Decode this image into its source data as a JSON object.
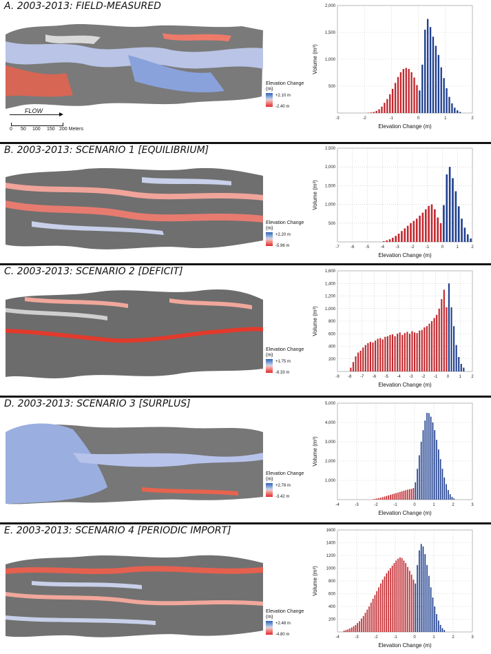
{
  "panels": [
    {
      "title": "A. 2003-2013: FIELD-MEASURED",
      "legend": {
        "title": "Elevation Change (m)",
        "high": "+2.10 m",
        "low": "-2.40 m"
      },
      "color_high": "#2e63b8",
      "color_low": "#e02a2a"
    },
    {
      "title": "B. 2003-2013: SCENARIO 1 [EQUILIBRIUM]",
      "legend": {
        "title": "Elevation Change (m)",
        "high": "+2.20 m",
        "low": "-5.96 m"
      }
    },
    {
      "title": "C. 2003-2013: SCENARIO 2 [DEFICIT]",
      "legend": {
        "title": "Elevation Change (m)",
        "high": "+1.75 m",
        "low": "-8.33 m"
      }
    },
    {
      "title": "D. 2003-2013: SCENARIO 3 [SURPLUS]",
      "legend": {
        "title": "Elevation Change (m)",
        "high": "+2.78 m",
        "low": "-3.42 m"
      }
    },
    {
      "title": "E. 2003-2013: SCENARIO 4 [PERIODIC IMPORT]",
      "legend": {
        "title": "Elevation Change (m)",
        "high": "+2.48 m",
        "low": "-4.80 m"
      }
    }
  ],
  "flow": {
    "label": "FLOW",
    "scale": [
      "0",
      "50",
      "100",
      "150",
      "200 Meters"
    ]
  },
  "chart_data": [
    {
      "type": "bar",
      "xlabel": "Elevation Change (m)",
      "ylabel": "Volume (m³)",
      "xlim": [
        -3,
        2
      ],
      "ylim": [
        0,
        2000
      ],
      "xticks": [
        "-3",
        "-2",
        "-1",
        "0",
        "1",
        "2"
      ],
      "yticks": [
        "500",
        "1,000",
        "1,500",
        "2,000"
      ],
      "bin": 0.1,
      "series": [
        {
          "color": "red",
          "x0": -1.9,
          "values": [
            5,
            10,
            20,
            40,
            70,
            120,
            190,
            260,
            350,
            450,
            560,
            670,
            760,
            820,
            840,
            820,
            760,
            660,
            520
          ]
        },
        {
          "color": "blue",
          "x0": 0.0,
          "values": [
            420,
            900,
            1550,
            1750,
            1600,
            1420,
            1250,
            1080,
            850,
            650,
            460,
            300,
            180,
            100,
            50,
            20
          ]
        }
      ]
    },
    {
      "type": "bar",
      "xlabel": "Elevation Change (m)",
      "ylabel": "Volume (m³)",
      "xlim": [
        -7,
        2
      ],
      "ylim": [
        0,
        2500
      ],
      "xticks": [
        "-7",
        "-6",
        "-5",
        "-4",
        "-3",
        "-2",
        "-1",
        "0",
        "1",
        "2"
      ],
      "yticks": [
        "500",
        "1,000",
        "1,500",
        "2,000",
        "2,500"
      ],
      "bin": 0.2,
      "series": [
        {
          "color": "red",
          "x0": -4.0,
          "values": [
            20,
            40,
            70,
            110,
            160,
            220,
            290,
            360,
            430,
            500,
            560,
            620,
            700,
            780,
            870,
            960,
            1000,
            870,
            650,
            500
          ]
        },
        {
          "color": "blue",
          "x0": 0.0,
          "values": [
            980,
            1800,
            2000,
            1700,
            1350,
            950,
            620,
            380,
            200,
            90
          ]
        }
      ]
    },
    {
      "type": "bar",
      "xlabel": "Elevation Change (m)",
      "ylabel": "Volume (m³)",
      "xlim": [
        -9,
        2
      ],
      "ylim": [
        0,
        1600
      ],
      "xticks": [
        "-9",
        "-8",
        "-7",
        "-6",
        "-5",
        "-4",
        "-3",
        "-2",
        "-1",
        "0",
        "1",
        "2"
      ],
      "yticks": [
        "200",
        "400",
        "600",
        "800",
        "1,000",
        "1,200",
        "1,400",
        "1,600"
      ],
      "bin": 0.2,
      "series": [
        {
          "color": "red",
          "x0": -8.0,
          "values": [
            60,
            150,
            240,
            300,
            330,
            380,
            420,
            450,
            470,
            460,
            490,
            520,
            530,
            510,
            550,
            560,
            580,
            590,
            560,
            600,
            620,
            580,
            610,
            630,
            600,
            640,
            620,
            610,
            650,
            660,
            700,
            720,
            760,
            800,
            850,
            900,
            1000,
            1150,
            1300,
            1020
          ]
        },
        {
          "color": "blue",
          "x0": 0.0,
          "values": [
            1400,
            1020,
            720,
            420,
            230,
            120,
            60
          ]
        }
      ]
    },
    {
      "type": "bar",
      "xlabel": "Elevation Change (m)",
      "ylabel": "Volume (m³)",
      "xlim": [
        -4,
        3
      ],
      "ylim": [
        0,
        5000
      ],
      "xticks": [
        "-4",
        "-3",
        "-2",
        "-1",
        "0",
        "1",
        "2",
        "3"
      ],
      "yticks": [
        "1,000",
        "2,000",
        "3,000",
        "4,000",
        "5,000"
      ],
      "bin": 0.1,
      "series": [
        {
          "color": "red",
          "x0": -2.2,
          "values": [
            20,
            40,
            60,
            80,
            100,
            130,
            160,
            190,
            220,
            250,
            280,
            310,
            340,
            370,
            400,
            430,
            460,
            490,
            520,
            540,
            560,
            600
          ]
        },
        {
          "color": "blue",
          "x0": 0.0,
          "values": [
            900,
            1600,
            2300,
            3000,
            3600,
            4100,
            4500,
            4480,
            4300,
            4000,
            3600,
            3100,
            2600,
            2100,
            1600,
            1150,
            800,
            500,
            280,
            140,
            60
          ]
        }
      ]
    },
    {
      "type": "bar",
      "xlabel": "Elevation Change (m)",
      "ylabel": "Volume (m³)",
      "xlim": [
        -4,
        3
      ],
      "ylim": [
        0,
        1600
      ],
      "xticks": [
        "-4",
        "-3",
        "-2",
        "-1",
        "0",
        "1",
        "2",
        "3"
      ],
      "yticks": [
        "200",
        "400",
        "600",
        "800",
        "1000",
        "1200",
        "1400",
        "1600"
      ],
      "bin": 0.1,
      "series": [
        {
          "color": "red",
          "x0": -3.7,
          "values": [
            20,
            30,
            40,
            55,
            70,
            90,
            110,
            140,
            170,
            210,
            250,
            300,
            350,
            400,
            460,
            520,
            580,
            640,
            700,
            760,
            820,
            870,
            920,
            960,
            1000,
            1040,
            1080,
            1120,
            1150,
            1170,
            1160,
            1120,
            1080,
            1020,
            960,
            900,
            820
          ]
        },
        {
          "color": "blue",
          "x0": 0.0,
          "values": [
            760,
            1050,
            1280,
            1380,
            1340,
            1220,
            1050,
            880,
            700,
            540,
            400,
            280,
            180,
            110,
            60,
            30
          ]
        }
      ]
    }
  ]
}
